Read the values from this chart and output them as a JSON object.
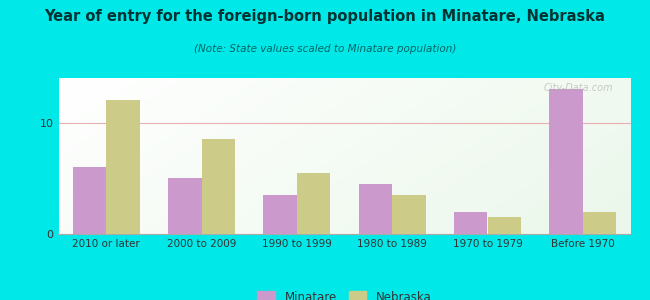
{
  "title": "Year of entry for the foreign-born population in Minatare, Nebraska",
  "subtitle": "(Note: State values scaled to Minatare population)",
  "categories": [
    "2010 or later",
    "2000 to 2009",
    "1990 to 1999",
    "1980 to 1989",
    "1970 to 1979",
    "Before 1970"
  ],
  "minatare_values": [
    6.0,
    5.0,
    3.5,
    4.5,
    2.0,
    13.0
  ],
  "nebraska_values": [
    12.0,
    8.5,
    5.5,
    3.5,
    1.5,
    2.0
  ],
  "minatare_color": "#cc99cc",
  "nebraska_color": "#cccc88",
  "background_outer": "#00e8e8",
  "ylim": [
    0,
    14
  ],
  "yticks": [
    0,
    10
  ],
  "bar_width": 0.35,
  "legend_minatare": "Minatare",
  "legend_nebraska": "Nebraska",
  "watermark": "City-Data.com",
  "title_color": "#003333",
  "subtitle_color": "#006666",
  "tick_color": "#333333",
  "grid_color": "#e8b0b0"
}
